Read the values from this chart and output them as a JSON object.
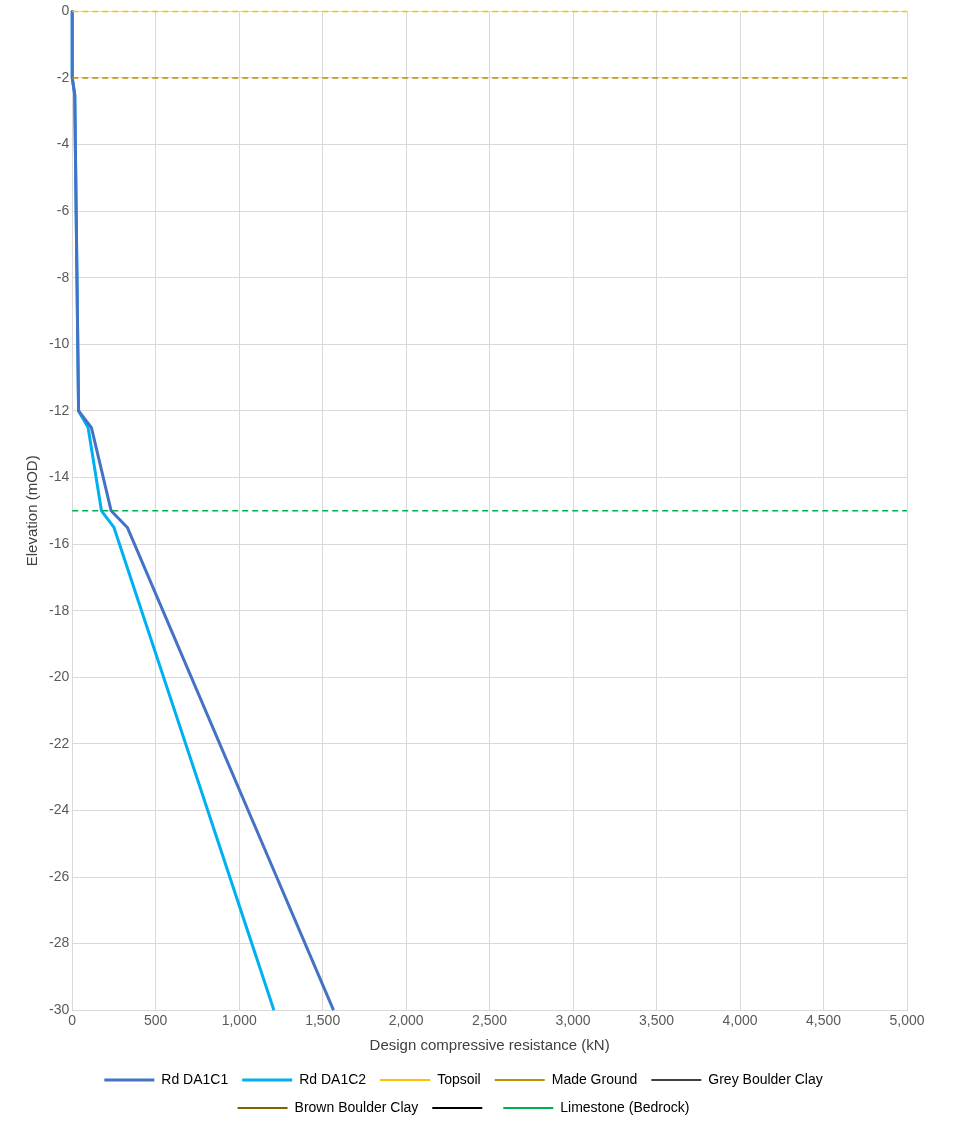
{
  "chart_data": {
    "type": "line",
    "xlabel": "Design compressive resistance (kN)",
    "ylabel": "Elevation (mOD)",
    "xlim": [
      0,
      5000
    ],
    "xticks": [
      0,
      500,
      {
        "value": 1000,
        "label": "1,000"
      },
      {
        "value": 1500,
        "label": "1,500"
      },
      {
        "value": 2000,
        "label": "2,000"
      },
      {
        "value": 2500,
        "label": "2,500"
      },
      {
        "value": 3000,
        "label": "3,000"
      },
      {
        "value": 3500,
        "label": "3,500"
      },
      {
        "value": 4000,
        "label": "4,000"
      },
      {
        "value": 4500,
        "label": "4,500"
      },
      {
        "value": 5000,
        "label": "5,000"
      }
    ],
    "ylim": [
      -30,
      0
    ],
    "yticks": [
      0,
      -2,
      -4,
      -6,
      -8,
      -10,
      -12,
      -14,
      -16,
      -18,
      -20,
      -22,
      -24,
      -26,
      -28,
      -30
    ],
    "grid": true,
    "legend": "bottom",
    "marker": "none",
    "series": [
      {
        "name": "Rd DA1C1",
        "color": "#4472c4",
        "line_style": "solid",
        "x": [
          0,
          0,
          15,
          38,
          115,
          233,
          330,
          1565
        ],
        "values": [
          0,
          -2,
          -2.5,
          -12,
          -12.5,
          -15,
          -15.5,
          -30
        ]
      },
      {
        "name": "Rd DA1C2",
        "color": "#00b0f0",
        "line_style": "solid",
        "x": [
          0,
          0,
          15,
          38,
          95,
          175,
          250,
          1208
        ],
        "values": [
          0,
          -2,
          -2.5,
          -12,
          -12.5,
          -15,
          -15.5,
          -30
        ]
      },
      {
        "name": "Topsoil",
        "color": "#ffc000",
        "line_style": "dashed",
        "x": [
          0,
          5000
        ],
        "values": [
          0,
          0
        ]
      },
      {
        "name": "Made Ground",
        "color": "#bf9000",
        "line_style": "dashed",
        "x": [
          0,
          5000
        ],
        "values": [
          -2,
          -2
        ]
      },
      {
        "name": "Grey Boulder Clay",
        "color": "#404040",
        "line_style": "dashed"
      },
      {
        "name": "Brown Boulder Clay",
        "color": "#806000",
        "line_style": "dotted"
      },
      {
        "color": "#000000",
        "line_style": "dotted"
      },
      {
        "name": "Limestone (Bedrock)",
        "color": "#00b050",
        "line_style": "dashed",
        "x": [
          0,
          5000
        ],
        "values": [
          -15,
          -15
        ]
      }
    ]
  }
}
